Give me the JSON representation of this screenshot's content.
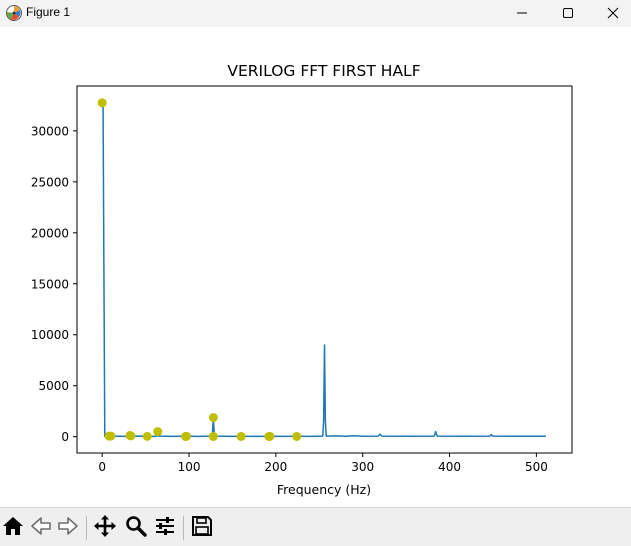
{
  "window": {
    "title": "Figure 1",
    "icons": [
      "matplotlib-figure-icon",
      "minimize-icon",
      "maximize-icon",
      "close-icon"
    ]
  },
  "toolbar": {
    "icons": [
      "home-icon",
      "back-icon",
      "forward-icon",
      "pan-icon",
      "zoom-icon",
      "configure-subplots-icon",
      "save-icon"
    ]
  },
  "colors": {
    "line": "#1f77b4",
    "markers": "#bfbf00"
  },
  "chart_data": {
    "type": "line",
    "title": "VERILOG FFT FIRST HALF",
    "xlabel": "Frequency (Hz)",
    "ylabel": "",
    "xlim": [
      -29,
      541
    ],
    "ylim": [
      -1600,
      34400
    ],
    "xticks": [
      0,
      100,
      200,
      300,
      400,
      500
    ],
    "yticks": [
      0,
      5000,
      10000,
      15000,
      20000,
      25000,
      30000
    ],
    "xtick_labels": [
      "0",
      "100",
      "200",
      "300",
      "400",
      "500"
    ],
    "ytick_labels": [
      "0",
      "5000",
      "10000",
      "15000",
      "20000",
      "25000",
      "30000"
    ],
    "grid": false,
    "series": [
      {
        "style": "line",
        "x": [
          0,
          1,
          2,
          3,
          4,
          5,
          10,
          20,
          30,
          40,
          50,
          60,
          63,
          64,
          65,
          80,
          96,
          110,
          126,
          127,
          128,
          129,
          130,
          150,
          160,
          180,
          192,
          210,
          224,
          240,
          254,
          255,
          256,
          257,
          258,
          270,
          280,
          290,
          300,
          318,
          319,
          320,
          321,
          322,
          350,
          382,
          383,
          384,
          385,
          386,
          420,
          446,
          447,
          448,
          449,
          450,
          480,
          511
        ],
        "y": [
          32700,
          32700,
          16000,
          30,
          30,
          40,
          60,
          40,
          30,
          60,
          40,
          30,
          60,
          400,
          60,
          30,
          50,
          30,
          60,
          400,
          1800,
          400,
          60,
          30,
          40,
          30,
          40,
          30,
          40,
          30,
          60,
          1500,
          9000,
          1500,
          60,
          80,
          40,
          90,
          40,
          60,
          150,
          250,
          150,
          60,
          40,
          60,
          200,
          500,
          200,
          60,
          40,
          60,
          100,
          200,
          100,
          60,
          40,
          40
        ]
      },
      {
        "style": "markers",
        "x": [
          0,
          8,
          10,
          32,
          33,
          52,
          64,
          96,
          97,
          128,
          128,
          160,
          192,
          193,
          224
        ],
        "y": [
          32750,
          50,
          60,
          120,
          80,
          30,
          500,
          20,
          30,
          1880,
          20,
          20,
          20,
          30,
          20
        ]
      }
    ]
  }
}
